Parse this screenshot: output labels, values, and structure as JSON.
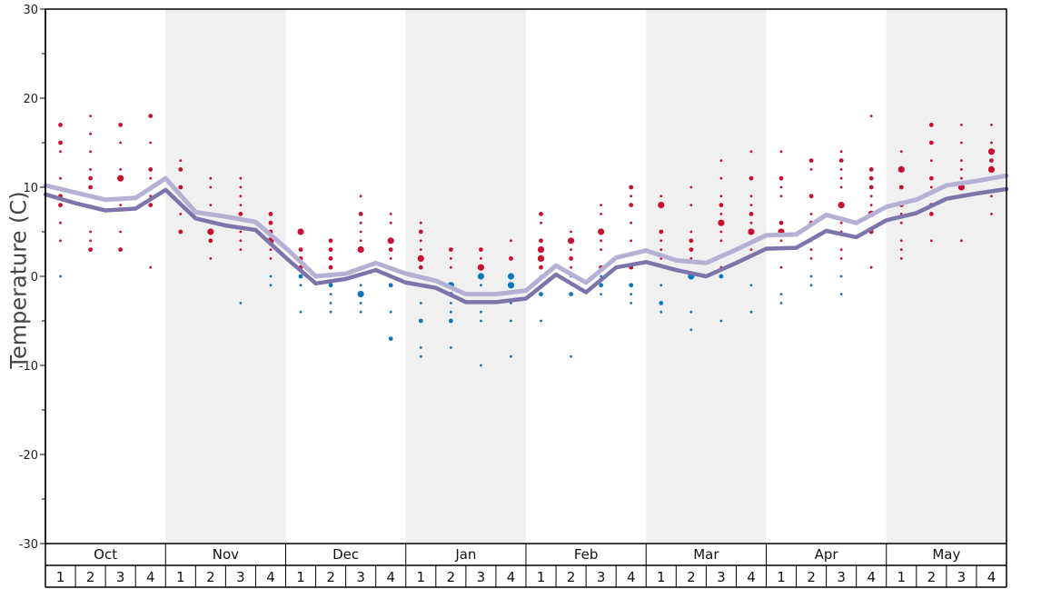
{
  "chart_data": {
    "type": "scatter",
    "title": "",
    "ylabel": "Temperature (C)",
    "ylim": [
      -30,
      30
    ],
    "yticks": [
      30,
      20,
      10,
      0,
      -10,
      -20,
      -30
    ],
    "months": [
      "Oct",
      "Nov",
      "Dec",
      "Jan",
      "Feb",
      "Mar",
      "Apr",
      "May"
    ],
    "weeks": [
      "1",
      "2",
      "3",
      "4"
    ],
    "colors": {
      "warm_dot": "#c8102e",
      "cold_dot": "#0b76b8",
      "line_light": "#b5b0d4",
      "line_dark": "#7c74ab",
      "band": "#f0f0f0"
    },
    "series": [
      {
        "values": [
          10.2,
          9.4,
          8.6,
          8.8,
          11.0,
          7.2,
          6.7,
          6.1,
          3.2,
          0.0,
          0.3,
          1.5,
          0.3,
          -0.5,
          -2.0,
          -2.0,
          -1.6,
          1.2,
          -0.7,
          2.1,
          2.9,
          1.8,
          1.5,
          3.0,
          4.6,
          4.7,
          6.9,
          6.0,
          7.8,
          8.6,
          10.2,
          10.7,
          11.3
        ]
      },
      {
        "values": [
          9.2,
          8.2,
          7.4,
          7.6,
          9.7,
          6.5,
          5.7,
          5.2,
          2.1,
          -0.8,
          -0.3,
          0.7,
          -0.7,
          -1.3,
          -2.9,
          -2.9,
          -2.5,
          0.2,
          -1.8,
          1.0,
          1.6,
          0.7,
          0.0,
          1.5,
          3.1,
          3.2,
          5.1,
          4.4,
          6.3,
          7.1,
          8.7,
          9.3,
          9.8
        ]
      }
    ],
    "points": [
      [
        0,
        17,
        1
      ],
      [
        0,
        15,
        1
      ],
      [
        0,
        14,
        0
      ],
      [
        0,
        11,
        0
      ],
      [
        0,
        9,
        1
      ],
      [
        0,
        8,
        1
      ],
      [
        0,
        6,
        0
      ],
      [
        0,
        4,
        0
      ],
      [
        0,
        0,
        0
      ],
      [
        1,
        18,
        0
      ],
      [
        1,
        16,
        0
      ],
      [
        1,
        14,
        0
      ],
      [
        1,
        12,
        0
      ],
      [
        1,
        11,
        1
      ],
      [
        1,
        10,
        1
      ],
      [
        1,
        5,
        0
      ],
      [
        1,
        4,
        0
      ],
      [
        1,
        3,
        1
      ],
      [
        2,
        17,
        1
      ],
      [
        2,
        15,
        0
      ],
      [
        2,
        12,
        0
      ],
      [
        2,
        11,
        2
      ],
      [
        2,
        8,
        0
      ],
      [
        2,
        5,
        0
      ],
      [
        2,
        3,
        1
      ],
      [
        3,
        18,
        1
      ],
      [
        3,
        15,
        0
      ],
      [
        3,
        12,
        1
      ],
      [
        3,
        11,
        0
      ],
      [
        3,
        9,
        0
      ],
      [
        3,
        8,
        1
      ],
      [
        3,
        1,
        0
      ],
      [
        4,
        13,
        0
      ],
      [
        4,
        12,
        1
      ],
      [
        4,
        10,
        1
      ],
      [
        4,
        9,
        0
      ],
      [
        4,
        7,
        0
      ],
      [
        4,
        5,
        1
      ],
      [
        5,
        11,
        0
      ],
      [
        5,
        10,
        0
      ],
      [
        5,
        8,
        0
      ],
      [
        5,
        7,
        0
      ],
      [
        5,
        5,
        2
      ],
      [
        5,
        4,
        1
      ],
      [
        5,
        2,
        0
      ],
      [
        6,
        11,
        0
      ],
      [
        6,
        10,
        0
      ],
      [
        6,
        9,
        0
      ],
      [
        6,
        8,
        0
      ],
      [
        6,
        7,
        1
      ],
      [
        6,
        5,
        0
      ],
      [
        6,
        4,
        0
      ],
      [
        6,
        3,
        0
      ],
      [
        6,
        -3,
        0
      ],
      [
        7,
        7,
        1
      ],
      [
        7,
        6,
        1
      ],
      [
        7,
        5,
        1
      ],
      [
        7,
        4,
        2
      ],
      [
        7,
        3,
        0
      ],
      [
        7,
        2,
        0
      ],
      [
        7,
        0,
        0
      ],
      [
        7,
        -1,
        0
      ],
      [
        8,
        5,
        2
      ],
      [
        8,
        3,
        1
      ],
      [
        8,
        2,
        1
      ],
      [
        8,
        1,
        1
      ],
      [
        8,
        0,
        1
      ],
      [
        8,
        -1,
        0
      ],
      [
        8,
        -4,
        0
      ],
      [
        9,
        4,
        1
      ],
      [
        9,
        3,
        1
      ],
      [
        9,
        2,
        1
      ],
      [
        9,
        1,
        1
      ],
      [
        9,
        0,
        0
      ],
      [
        9,
        -1,
        1
      ],
      [
        9,
        -2,
        0
      ],
      [
        9,
        -3,
        0
      ],
      [
        9,
        -4,
        0
      ],
      [
        10,
        9,
        0
      ],
      [
        10,
        7,
        1
      ],
      [
        10,
        6,
        0
      ],
      [
        10,
        5,
        0
      ],
      [
        10,
        4,
        0
      ],
      [
        10,
        3,
        2
      ],
      [
        10,
        1,
        0
      ],
      [
        10,
        -1,
        0
      ],
      [
        10,
        -2,
        2
      ],
      [
        10,
        -3,
        0
      ],
      [
        10,
        -4,
        0
      ],
      [
        11,
        7,
        0
      ],
      [
        11,
        6,
        0
      ],
      [
        11,
        4,
        2
      ],
      [
        11,
        3,
        1
      ],
      [
        11,
        2,
        0
      ],
      [
        11,
        1,
        0
      ],
      [
        11,
        -1,
        1
      ],
      [
        11,
        -4,
        0
      ],
      [
        11,
        -7,
        1
      ],
      [
        12,
        6,
        0
      ],
      [
        12,
        5,
        1
      ],
      [
        12,
        4,
        0
      ],
      [
        12,
        3,
        0
      ],
      [
        12,
        2,
        2
      ],
      [
        12,
        1,
        1
      ],
      [
        12,
        -1,
        0
      ],
      [
        12,
        -3,
        0
      ],
      [
        12,
        -5,
        1
      ],
      [
        12,
        -8,
        0
      ],
      [
        12,
        -9,
        0
      ],
      [
        13,
        3,
        1
      ],
      [
        13,
        2,
        0
      ],
      [
        13,
        1,
        0
      ],
      [
        13,
        -1,
        2
      ],
      [
        13,
        -2,
        1
      ],
      [
        13,
        -3,
        0
      ],
      [
        13,
        -4,
        0
      ],
      [
        13,
        -5,
        1
      ],
      [
        13,
        -8,
        0
      ],
      [
        14,
        3,
        1
      ],
      [
        14,
        2,
        0
      ],
      [
        14,
        1,
        2
      ],
      [
        14,
        0,
        2
      ],
      [
        14,
        -1,
        0
      ],
      [
        14,
        -2,
        0
      ],
      [
        14,
        -4,
        0
      ],
      [
        14,
        -5,
        0
      ],
      [
        14,
        -10,
        0
      ],
      [
        15,
        4,
        0
      ],
      [
        15,
        2,
        1
      ],
      [
        15,
        0,
        2
      ],
      [
        15,
        -1,
        2
      ],
      [
        15,
        -3,
        0
      ],
      [
        15,
        -5,
        0
      ],
      [
        15,
        -9,
        0
      ],
      [
        16,
        7,
        1
      ],
      [
        16,
        6,
        0
      ],
      [
        16,
        4,
        1
      ],
      [
        16,
        3,
        2
      ],
      [
        16,
        2,
        2
      ],
      [
        16,
        1,
        1
      ],
      [
        16,
        0,
        0
      ],
      [
        16,
        -2,
        1
      ],
      [
        16,
        -5,
        0
      ],
      [
        17,
        5,
        0
      ],
      [
        17,
        4,
        2
      ],
      [
        17,
        3,
        0
      ],
      [
        17,
        2,
        1
      ],
      [
        17,
        1,
        0
      ],
      [
        17,
        0,
        0
      ],
      [
        17,
        -2,
        1
      ],
      [
        17,
        -9,
        0
      ],
      [
        18,
        8,
        0
      ],
      [
        18,
        7,
        0
      ],
      [
        18,
        5,
        2
      ],
      [
        18,
        4,
        0
      ],
      [
        18,
        3,
        0
      ],
      [
        18,
        1,
        1
      ],
      [
        18,
        0,
        0
      ],
      [
        18,
        -1,
        1
      ],
      [
        18,
        -2,
        0
      ],
      [
        19,
        10,
        1
      ],
      [
        19,
        9,
        0
      ],
      [
        19,
        8,
        1
      ],
      [
        19,
        6,
        0
      ],
      [
        19,
        4,
        0
      ],
      [
        19,
        1,
        1
      ],
      [
        19,
        -1,
        1
      ],
      [
        19,
        -2,
        0
      ],
      [
        19,
        -3,
        0
      ],
      [
        20,
        9,
        0
      ],
      [
        20,
        8,
        2
      ],
      [
        20,
        5,
        1
      ],
      [
        20,
        4,
        0
      ],
      [
        20,
        3,
        0
      ],
      [
        20,
        2,
        0
      ],
      [
        20,
        -1,
        0
      ],
      [
        20,
        -3,
        1
      ],
      [
        20,
        -4,
        0
      ],
      [
        21,
        10,
        0
      ],
      [
        21,
        8,
        0
      ],
      [
        21,
        5,
        0
      ],
      [
        21,
        4,
        1
      ],
      [
        21,
        3,
        1
      ],
      [
        21,
        2,
        0
      ],
      [
        21,
        0,
        2
      ],
      [
        21,
        -4,
        0
      ],
      [
        21,
        -6,
        0
      ],
      [
        22,
        13,
        0
      ],
      [
        22,
        11,
        0
      ],
      [
        22,
        9,
        0
      ],
      [
        22,
        8,
        1
      ],
      [
        22,
        7,
        0
      ],
      [
        22,
        6,
        2
      ],
      [
        22,
        5,
        0
      ],
      [
        22,
        4,
        0
      ],
      [
        22,
        1,
        0
      ],
      [
        22,
        0,
        1
      ],
      [
        22,
        -5,
        0
      ],
      [
        23,
        14,
        0
      ],
      [
        23,
        11,
        1
      ],
      [
        23,
        9,
        0
      ],
      [
        23,
        8,
        0
      ],
      [
        23,
        7,
        1
      ],
      [
        23,
        6,
        0
      ],
      [
        23,
        5,
        2
      ],
      [
        23,
        3,
        0
      ],
      [
        23,
        -1,
        0
      ],
      [
        23,
        -4,
        0
      ],
      [
        24,
        14,
        0
      ],
      [
        24,
        11,
        1
      ],
      [
        24,
        10,
        0
      ],
      [
        24,
        9,
        0
      ],
      [
        24,
        6,
        1
      ],
      [
        24,
        5,
        2
      ],
      [
        24,
        4,
        0
      ],
      [
        24,
        1,
        0
      ],
      [
        24,
        -2,
        0
      ],
      [
        24,
        -3,
        0
      ],
      [
        25,
        13,
        1
      ],
      [
        25,
        12,
        0
      ],
      [
        25,
        9,
        1
      ],
      [
        25,
        7,
        0
      ],
      [
        25,
        6,
        1
      ],
      [
        25,
        4,
        0
      ],
      [
        25,
        3,
        0
      ],
      [
        25,
        2,
        0
      ],
      [
        25,
        0,
        0
      ],
      [
        25,
        -1,
        0
      ],
      [
        26,
        14,
        0
      ],
      [
        26,
        13,
        1
      ],
      [
        26,
        12,
        0
      ],
      [
        26,
        11,
        0
      ],
      [
        26,
        10,
        0
      ],
      [
        26,
        8,
        2
      ],
      [
        26,
        6,
        0
      ],
      [
        26,
        5,
        0
      ],
      [
        26,
        3,
        0
      ],
      [
        26,
        2,
        0
      ],
      [
        26,
        0,
        0
      ],
      [
        26,
        -2,
        0
      ],
      [
        27,
        18,
        0
      ],
      [
        27,
        12,
        1
      ],
      [
        27,
        11,
        1
      ],
      [
        27,
        10,
        1
      ],
      [
        27,
        9,
        0
      ],
      [
        27,
        8,
        0
      ],
      [
        27,
        7,
        2
      ],
      [
        27,
        5,
        1
      ],
      [
        27,
        1,
        0
      ],
      [
        28,
        14,
        0
      ],
      [
        28,
        12,
        2
      ],
      [
        28,
        10,
        1
      ],
      [
        28,
        8,
        1
      ],
      [
        28,
        7,
        0
      ],
      [
        28,
        6,
        0
      ],
      [
        28,
        4,
        0
      ],
      [
        28,
        3,
        0
      ],
      [
        28,
        2,
        0
      ],
      [
        29,
        17,
        1
      ],
      [
        29,
        15,
        1
      ],
      [
        29,
        13,
        0
      ],
      [
        29,
        11,
        1
      ],
      [
        29,
        10,
        0
      ],
      [
        29,
        8,
        1
      ],
      [
        29,
        7,
        1
      ],
      [
        29,
        4,
        0
      ],
      [
        30,
        17,
        0
      ],
      [
        30,
        15,
        0
      ],
      [
        30,
        13,
        0
      ],
      [
        30,
        12,
        0
      ],
      [
        30,
        11,
        0
      ],
      [
        30,
        10,
        2
      ],
      [
        30,
        9,
        0
      ],
      [
        30,
        4,
        0
      ],
      [
        31,
        17,
        0
      ],
      [
        31,
        15,
        0
      ],
      [
        31,
        14,
        2
      ],
      [
        31,
        13,
        1
      ],
      [
        31,
        12,
        2
      ],
      [
        31,
        11,
        0
      ],
      [
        31,
        9,
        0
      ],
      [
        31,
        7,
        0
      ]
    ]
  }
}
